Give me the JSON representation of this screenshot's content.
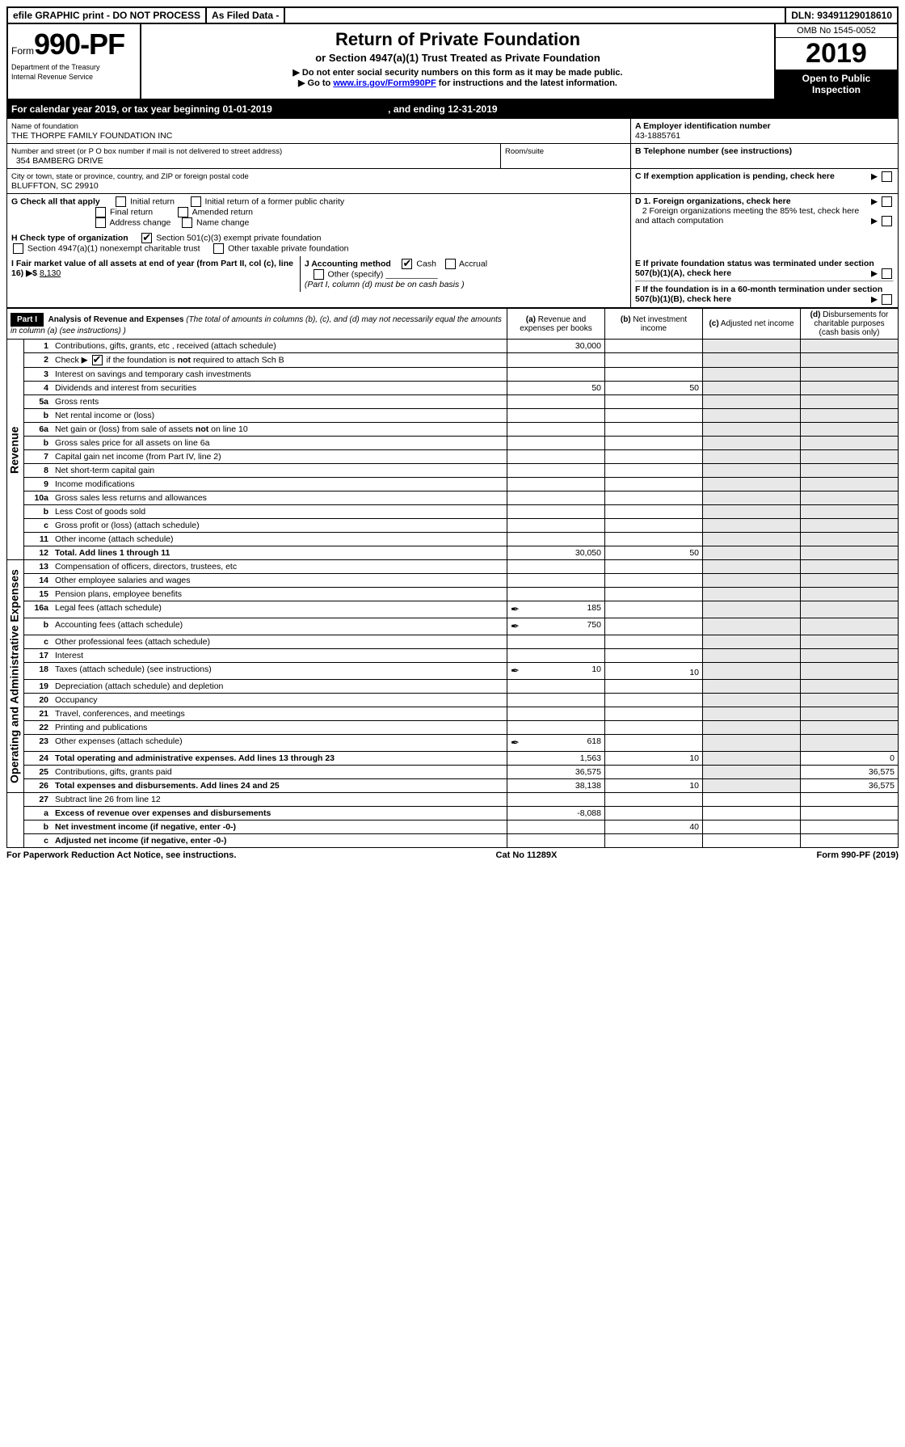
{
  "top": {
    "efile": "efile GRAPHIC print - DO NOT PROCESS",
    "asFiled": "As Filed Data -",
    "dln": "DLN: 93491129018610"
  },
  "header": {
    "formPrefix": "Form",
    "formNumber": "990-PF",
    "dept1": "Department of the Treasury",
    "dept2": "Internal Revenue Service",
    "title": "Return of Private Foundation",
    "sub1": "or Section 4947(a)(1) Trust Treated as Private Foundation",
    "sub2a": "▶ Do not enter social security numbers on this form as it may be made public.",
    "sub2b": "▶ Go to ",
    "sub2link": "www.irs.gov/Form990PF",
    "sub2c": " for instructions and the latest information.",
    "omb": "OMB No 1545-0052",
    "year": "2019",
    "open": "Open to Public Inspection"
  },
  "calYear": {
    "label": "For calendar year 2019, or tax year beginning 01-01-2019",
    "ending": ", and ending 12-31-2019"
  },
  "info": {
    "nameLabel": "Name of foundation",
    "name": "THE THORPE FAMILY FOUNDATION INC",
    "addrLabel": "Number and street (or P O  box number if mail is not delivered to street address)",
    "addr": "354 BAMBERG DRIVE",
    "roomLabel": "Room/suite",
    "cityLabel": "City or town, state or province, country, and ZIP or foreign postal code",
    "city": "BLUFFTON, SC  29910",
    "A_label": "A Employer identification number",
    "A_val": "43-1885761",
    "B_label": "B Telephone number (see instructions)",
    "C_label": "C If exemption application is pending, check here",
    "G_label": "G Check all that apply",
    "G_opts": [
      "Initial return",
      "Initial return of a former public charity",
      "Final return",
      "Amended return",
      "Address change",
      "Name change"
    ],
    "H_label": "H Check type of organization",
    "H_opt1": "Section 501(c)(3) exempt private foundation",
    "H_opt2": "Section 4947(a)(1) nonexempt charitable trust",
    "H_opt3": "Other taxable private foundation",
    "I_label": "I Fair market value of all assets at end of year (from Part II, col (c), line 16) ▶$ ",
    "I_val": "8,130",
    "J_label": "J Accounting method",
    "J_opts": [
      "Cash",
      "Accrual"
    ],
    "J_other": "Other (specify)",
    "J_note": "(Part I, column (d) must be on cash basis )",
    "D1": "D 1. Foreign organizations, check here",
    "D2": "2 Foreign organizations meeting the 85% test, check here and attach computation",
    "E": "E  If private foundation status was terminated under section 507(b)(1)(A), check here",
    "F": "F  If the foundation is in a 60-month termination under section 507(b)(1)(B), check here"
  },
  "part1": {
    "label": "Part I",
    "title": "Analysis of Revenue and Expenses",
    "titleNote": " (The total of amounts in columns (b), (c), and (d) may not necessarily equal the amounts in column (a) (see instructions) )",
    "colA": "(a) Revenue and expenses per books",
    "colB": "(b) Net investment income",
    "colC": "(c) Adjusted net income",
    "colD": "(d) Disbursements for charitable purposes (cash basis only)",
    "revenueLabel": "Revenue",
    "expensesLabel": "Operating and Administrative Expenses",
    "rows": [
      {
        "n": "1",
        "d": "Contributions, gifts, grants, etc , received (attach schedule)",
        "a": "30,000"
      },
      {
        "n": "2",
        "d": "Check ▶ ☑ if the foundation is not required to attach Sch B"
      },
      {
        "n": "3",
        "d": "Interest on savings and temporary cash investments"
      },
      {
        "n": "4",
        "d": "Dividends and interest from securities",
        "a": "50",
        "b": "50"
      },
      {
        "n": "5a",
        "d": "Gross rents"
      },
      {
        "n": "b",
        "d": "Net rental income or (loss)"
      },
      {
        "n": "6a",
        "d": "Net gain or (loss) from sale of assets not on line 10"
      },
      {
        "n": "b",
        "d": "Gross sales price for all assets on line 6a"
      },
      {
        "n": "7",
        "d": "Capital gain net income (from Part IV, line 2)"
      },
      {
        "n": "8",
        "d": "Net short-term capital gain"
      },
      {
        "n": "9",
        "d": "Income modifications"
      },
      {
        "n": "10a",
        "d": "Gross sales less returns and allowances"
      },
      {
        "n": "b",
        "d": "Less  Cost of goods sold"
      },
      {
        "n": "c",
        "d": "Gross profit or (loss) (attach schedule)"
      },
      {
        "n": "11",
        "d": "Other income (attach schedule)"
      },
      {
        "n": "12",
        "d": "Total. Add lines 1 through 11",
        "bold": true,
        "a": "30,050",
        "b": "50"
      }
    ],
    "expRows": [
      {
        "n": "13",
        "d": "Compensation of officers, directors, trustees, etc"
      },
      {
        "n": "14",
        "d": "Other employee salaries and wages"
      },
      {
        "n": "15",
        "d": "Pension plans, employee benefits"
      },
      {
        "n": "16a",
        "d": "Legal fees (attach schedule)",
        "icon": true,
        "a": "185"
      },
      {
        "n": "b",
        "d": "Accounting fees (attach schedule)",
        "icon": true,
        "a": "750"
      },
      {
        "n": "c",
        "d": "Other professional fees (attach schedule)"
      },
      {
        "n": "17",
        "d": "Interest"
      },
      {
        "n": "18",
        "d": "Taxes (attach schedule) (see instructions)",
        "icon": true,
        "a": "10",
        "b": "10"
      },
      {
        "n": "19",
        "d": "Depreciation (attach schedule) and depletion"
      },
      {
        "n": "20",
        "d": "Occupancy"
      },
      {
        "n": "21",
        "d": "Travel, conferences, and meetings"
      },
      {
        "n": "22",
        "d": "Printing and publications"
      },
      {
        "n": "23",
        "d": "Other expenses (attach schedule)",
        "icon": true,
        "a": "618"
      },
      {
        "n": "24",
        "d": "Total operating and administrative expenses. Add lines 13 through 23",
        "bold": true,
        "a": "1,563",
        "b": "10",
        "dd": "0"
      },
      {
        "n": "25",
        "d": "Contributions, gifts, grants paid",
        "a": "36,575",
        "dd": "36,575"
      },
      {
        "n": "26",
        "d": "Total expenses and disbursements. Add lines 24 and 25",
        "bold": true,
        "a": "38,138",
        "b": "10",
        "dd": "36,575"
      }
    ],
    "finalRows": [
      {
        "n": "27",
        "d": "Subtract line 26 from line 12"
      },
      {
        "n": "a",
        "d": "Excess of revenue over expenses and disbursements",
        "bold": true,
        "a": "-8,088"
      },
      {
        "n": "b",
        "d": "Net investment income (if negative, enter -0-)",
        "bold": true,
        "b": "40"
      },
      {
        "n": "c",
        "d": "Adjusted net income (if negative, enter -0-)",
        "bold": true
      }
    ]
  },
  "footer": {
    "left": "For Paperwork Reduction Act Notice, see instructions.",
    "mid": "Cat No  11289X",
    "right": "Form 990-PF (2019)"
  }
}
